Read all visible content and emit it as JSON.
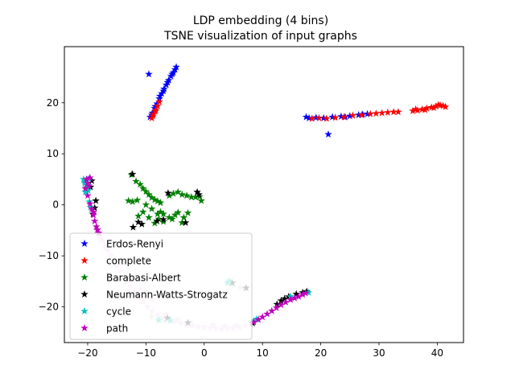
{
  "chart_data": {
    "type": "scatter",
    "title": "LDP embedding (4 bins)",
    "subtitle": "TSNE visualization of input graphs",
    "xlabel": "",
    "ylabel": "",
    "xlim": [
      -24,
      44.5
    ],
    "ylim": [
      -27,
      31
    ],
    "xticks": [
      -20,
      -10,
      0,
      10,
      20,
      30,
      40
    ],
    "yticks": [
      -20,
      -10,
      0,
      10,
      20
    ],
    "xtick_labels": [
      "−20",
      "−10",
      "0",
      "10",
      "20",
      "30",
      "40"
    ],
    "ytick_labels": [
      "−20",
      "−10",
      "0",
      "10",
      "20"
    ],
    "grid": false,
    "marker": "star",
    "legend_position": "lower-left",
    "series": [
      {
        "name": "Erdos-Renyi",
        "color": "#0000ff",
        "points": [
          [
            -9.3,
            17.2
          ],
          [
            -8.9,
            18.0
          ],
          [
            -8.5,
            18.9
          ],
          [
            -8.1,
            19.8
          ],
          [
            -7.7,
            20.8
          ],
          [
            -7.3,
            21.8
          ],
          [
            -6.9,
            22.7
          ],
          [
            -6.5,
            23.5
          ],
          [
            -6.1,
            24.4
          ],
          [
            -5.7,
            25.2
          ],
          [
            -5.3,
            25.9
          ],
          [
            -5.0,
            26.5
          ],
          [
            -4.8,
            27.0
          ],
          [
            -5.5,
            25.6
          ],
          [
            -6.3,
            24.0
          ],
          [
            -7.0,
            22.3
          ],
          [
            -9.5,
            25.6
          ],
          [
            -9.0,
            17.6
          ],
          [
            -8.4,
            19.3
          ],
          [
            -7.6,
            21.3
          ],
          [
            18.0,
            17.0
          ],
          [
            19.2,
            17.1
          ],
          [
            20.5,
            17.0
          ],
          [
            22.0,
            17.2
          ],
          [
            23.5,
            17.3
          ],
          [
            25.0,
            17.4
          ],
          [
            26.5,
            17.6
          ],
          [
            28.0,
            17.8
          ],
          [
            21.3,
            13.8
          ],
          [
            17.5,
            17.2
          ],
          [
            24.2,
            17.2
          ],
          [
            27.2,
            17.7
          ]
        ]
      },
      {
        "name": "complete",
        "color": "#ff0000",
        "points": [
          [
            -9.0,
            17.0
          ],
          [
            -8.7,
            17.8
          ],
          [
            -8.3,
            18.6
          ],
          [
            -8.0,
            19.4
          ],
          [
            -7.7,
            20.2
          ],
          [
            -8.8,
            17.4
          ],
          [
            -8.4,
            18.3
          ],
          [
            18.5,
            16.9
          ],
          [
            19.7,
            17.0
          ],
          [
            21.0,
            16.9
          ],
          [
            22.5,
            17.1
          ],
          [
            24.0,
            17.2
          ],
          [
            25.5,
            17.5
          ],
          [
            27.0,
            17.6
          ],
          [
            28.5,
            17.8
          ],
          [
            29.5,
            17.9
          ],
          [
            30.5,
            18.0
          ],
          [
            31.5,
            18.1
          ],
          [
            32.5,
            18.2
          ],
          [
            33.3,
            18.2
          ],
          [
            35.8,
            18.4
          ],
          [
            36.6,
            18.5
          ],
          [
            37.4,
            18.7
          ],
          [
            38.2,
            18.9
          ],
          [
            39.0,
            19.1
          ],
          [
            39.8,
            19.3
          ],
          [
            40.5,
            19.5
          ],
          [
            41.0,
            19.4
          ],
          [
            41.4,
            19.2
          ],
          [
            36.3,
            18.7
          ],
          [
            37.9,
            18.6
          ],
          [
            39.4,
            19.0
          ],
          [
            40.2,
            19.6
          ]
        ]
      },
      {
        "name": "Barabasi-Albert",
        "color": "#008000",
        "points": [
          [
            -12.5,
            5.9
          ],
          [
            -11.7,
            4.6
          ],
          [
            -11.0,
            4.0
          ],
          [
            -10.5,
            3.2
          ],
          [
            -10.0,
            2.6
          ],
          [
            -9.5,
            2.0
          ],
          [
            -9.0,
            1.4
          ],
          [
            -8.5,
            1.0
          ],
          [
            -8.0,
            0.7
          ],
          [
            -7.5,
            0.4
          ],
          [
            -11.5,
            0.9
          ],
          [
            -12.3,
            0.6
          ],
          [
            -13.0,
            0.8
          ],
          [
            -10.0,
            0.0
          ],
          [
            -9.0,
            -0.8
          ],
          [
            -10.5,
            -1.4
          ],
          [
            -11.3,
            -2.2
          ],
          [
            -7.5,
            -1.4
          ],
          [
            -7.0,
            -1.8
          ],
          [
            -6.0,
            -2.5
          ],
          [
            -5.5,
            -2.8
          ],
          [
            -7.0,
            -3.3
          ],
          [
            -8.5,
            -3.6
          ],
          [
            -7.8,
            -2.8
          ],
          [
            -4.5,
            -1.5
          ],
          [
            -3.5,
            -2.5
          ],
          [
            -3.8,
            -3.5
          ],
          [
            -2.8,
            -1.6
          ],
          [
            -5.0,
            -2.0
          ],
          [
            -4.5,
            2.5
          ],
          [
            -3.8,
            2.0
          ],
          [
            -3.0,
            1.8
          ],
          [
            -2.2,
            1.5
          ],
          [
            -1.5,
            1.5
          ],
          [
            -0.8,
            1.6
          ],
          [
            -0.5,
            0.8
          ],
          [
            -6.0,
            1.8
          ],
          [
            -5.3,
            2.2
          ],
          [
            -8.0,
            -1.8
          ],
          [
            -9.5,
            -2.5
          ]
        ]
      },
      {
        "name": "Neumann-Watts-Strogatz",
        "color": "#000000",
        "points": [
          [
            -12.3,
            6.0
          ],
          [
            -6.2,
            2.3
          ],
          [
            -1.2,
            2.5
          ],
          [
            -0.9,
            2.0
          ],
          [
            -11.3,
            -3.4
          ],
          [
            -10.7,
            -3.8
          ],
          [
            -12.2,
            -4.4
          ],
          [
            -8.1,
            -3.2
          ],
          [
            -7.0,
            -2.9
          ],
          [
            -3.2,
            -3.5
          ],
          [
            -19.3,
            4.7
          ],
          [
            -18.6,
            0.8
          ],
          [
            -18.8,
            -0.6
          ],
          [
            -19.1,
            -1.8
          ],
          [
            4.8,
            -15.3
          ],
          [
            7.2,
            -16.3
          ],
          [
            -6.3,
            -22.2
          ],
          [
            -2.8,
            -23.1
          ],
          [
            8.3,
            -23.2
          ],
          [
            12.5,
            -19.5
          ],
          [
            13.2,
            -18.8
          ],
          [
            13.8,
            -18.4
          ],
          [
            14.5,
            -18.0
          ],
          [
            15.8,
            -17.5
          ],
          [
            16.9,
            -17.2
          ],
          [
            17.6,
            -17.0
          ],
          [
            -19.5,
            3.5
          ]
        ]
      },
      {
        "name": "cycle",
        "color": "#00bfbf",
        "points": [
          [
            -20.7,
            5.0
          ],
          [
            -20.5,
            4.2
          ],
          [
            -20.2,
            3.4
          ],
          [
            -19.9,
            2.8
          ],
          [
            -19.7,
            0.6
          ],
          [
            -19.5,
            -0.5
          ],
          [
            -20.4,
            2.5
          ],
          [
            -20.0,
            3.8
          ],
          [
            17.9,
            -17.2
          ],
          [
            14.8,
            -18.0
          ],
          [
            9.0,
            -22.4
          ],
          [
            8.5,
            -22.8
          ],
          [
            4.3,
            -14.9
          ],
          [
            4.0,
            -15.3
          ],
          [
            -5.8,
            -22.7
          ],
          [
            -7.8,
            -22.6
          ],
          [
            -20.5,
            4.5
          ],
          [
            -19.8,
            5.1
          ]
        ]
      },
      {
        "name": "path",
        "color": "#bf00bf",
        "points": [
          [
            -20.2,
            5.0
          ],
          [
            -20.0,
            4.3
          ],
          [
            -19.8,
            3.7
          ],
          [
            -20.4,
            3.2
          ],
          [
            -19.6,
            5.3
          ],
          [
            -20.0,
            1.8
          ],
          [
            -19.6,
            0.2
          ],
          [
            -19.3,
            -0.8
          ],
          [
            -19.0,
            -2.0
          ],
          [
            -18.8,
            -3.2
          ],
          [
            -18.5,
            -4.3
          ],
          [
            -18.1,
            -5.5
          ],
          [
            8.5,
            -23.0
          ],
          [
            9.3,
            -22.5
          ],
          [
            10.0,
            -22.0
          ],
          [
            10.8,
            -21.4
          ],
          [
            11.6,
            -20.8
          ],
          [
            12.4,
            -20.2
          ],
          [
            13.2,
            -19.6
          ],
          [
            14.0,
            -19.1
          ],
          [
            14.8,
            -18.6
          ],
          [
            15.5,
            -18.3
          ],
          [
            16.2,
            -18.0
          ],
          [
            16.9,
            -17.6
          ],
          [
            17.4,
            -17.3
          ],
          [
            -19.0,
            -1.4
          ],
          [
            -18.3,
            -4.9
          ]
        ]
      },
      {
        "name": "",
        "color": "#e8c8e8",
        "points": [
          [
            -18.0,
            -6.0
          ],
          [
            -17.5,
            -7.0
          ],
          [
            -17.0,
            -8.0
          ],
          [
            -16.5,
            -9.0
          ],
          [
            -16.0,
            -10.0
          ],
          [
            -15.5,
            -11.0
          ],
          [
            -15.0,
            -12.0
          ],
          [
            -14.4,
            -13.0
          ],
          [
            -13.8,
            -14.0
          ],
          [
            -13.2,
            -15.0
          ],
          [
            -12.6,
            -16.0
          ],
          [
            -12.0,
            -17.0
          ],
          [
            -11.3,
            -18.0
          ],
          [
            -10.5,
            -19.0
          ],
          [
            -9.7,
            -20.0
          ],
          [
            -8.9,
            -20.8
          ],
          [
            -8.0,
            -21.5
          ],
          [
            -7.0,
            -22.0
          ],
          [
            -6.0,
            -22.5
          ],
          [
            -5.0,
            -22.9
          ],
          [
            -4.0,
            -23.2
          ],
          [
            -3.0,
            -23.5
          ],
          [
            -2.0,
            -23.7
          ],
          [
            -1.0,
            -23.9
          ],
          [
            0.0,
            -24.0
          ],
          [
            1.0,
            -24.1
          ],
          [
            2.0,
            -24.2
          ],
          [
            3.0,
            -24.3
          ],
          [
            4.0,
            -24.3
          ],
          [
            5.0,
            -24.2
          ],
          [
            6.0,
            -24.0
          ],
          [
            7.0,
            -23.7
          ],
          [
            8.0,
            -23.4
          ],
          [
            -11.0,
            -16.5
          ],
          [
            -9.0,
            -18.5
          ],
          [
            -14.0,
            -11.5
          ],
          [
            -16.8,
            -8.5
          ],
          [
            -17.8,
            -6.8
          ],
          [
            -12.0,
            -14.0
          ],
          [
            -10.0,
            -17.0
          ],
          [
            -18.5,
            -5.0
          ],
          [
            -6.5,
            -21.5
          ],
          [
            1.5,
            -23.5
          ],
          [
            3.5,
            -23.8
          ],
          [
            5.5,
            -23.6
          ],
          [
            -4.5,
            -22.5
          ],
          [
            -2.5,
            -23.0
          ]
        ]
      },
      {
        "name": "",
        "color": "#c8dcc8",
        "points": [
          [
            4.3,
            -15.0
          ],
          [
            4.6,
            -15.6
          ],
          [
            5.0,
            -15.9
          ],
          [
            6.2,
            -16.2
          ],
          [
            7.0,
            -16.5
          ],
          [
            -7.8,
            -22.2
          ],
          [
            -6.8,
            -22.7
          ],
          [
            -9.0,
            -21.9
          ]
        ]
      }
    ]
  }
}
